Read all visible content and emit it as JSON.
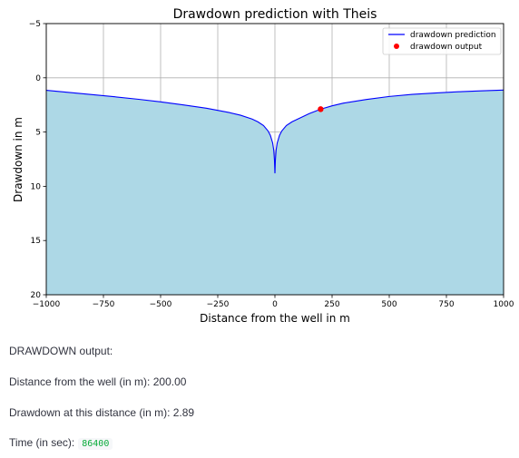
{
  "chart_data": {
    "type": "area",
    "title": "Drawdown prediction with Theis",
    "xlabel": "Distance from the well in m",
    "ylabel": "Drawdown in m",
    "xlim": [
      -1000,
      1000
    ],
    "ylim": [
      -5,
      20
    ],
    "y_inverted": true,
    "grid": true,
    "legend_placement": "top-right",
    "x_ticks": [
      -1000,
      -750,
      -500,
      -250,
      0,
      250,
      500,
      750,
      1000
    ],
    "y_ticks": [
      -5,
      0,
      5,
      10,
      15,
      20
    ],
    "x_tick_labels": [
      "−1000",
      "−750",
      "−500",
      "−250",
      "0",
      "250",
      "500",
      "750",
      "1000"
    ],
    "y_tick_labels": [
      "−5",
      "0",
      "5",
      "10",
      "15",
      "20"
    ],
    "series": [
      {
        "name": "drawdown prediction",
        "kind": "line",
        "color": "#0000ff",
        "fill_color": "#add8e6",
        "x": [
          -1000,
          -900,
          -800,
          -700,
          -600,
          -500,
          -400,
          -300,
          -250,
          -200,
          -150,
          -100,
          -75,
          -50,
          -30,
          -20,
          -10,
          -5,
          -2,
          0,
          2,
          5,
          10,
          20,
          30,
          50,
          75,
          100,
          150,
          200,
          250,
          300,
          400,
          500,
          600,
          700,
          800,
          900,
          1000
        ],
        "y": [
          1.15,
          1.35,
          1.55,
          1.75,
          1.97,
          2.22,
          2.5,
          2.8,
          3.0,
          3.2,
          3.45,
          3.8,
          4.05,
          4.4,
          4.9,
          5.3,
          6.0,
          6.7,
          7.6,
          8.8,
          7.6,
          6.7,
          6.0,
          5.3,
          4.9,
          4.4,
          4.05,
          3.8,
          3.3,
          2.89,
          2.58,
          2.33,
          2.0,
          1.72,
          1.53,
          1.4,
          1.29,
          1.2,
          1.13
        ]
      },
      {
        "name": "drawdown output",
        "kind": "scatter",
        "color": "#ff0000",
        "x": [
          200
        ],
        "y": [
          2.89
        ]
      }
    ]
  },
  "output": {
    "heading": "DRAWDOWN output:",
    "distance_label": "Distance from the well (in m): ",
    "distance_value": "200.00",
    "drawdown_label": "Drawdown at this distance (in m): ",
    "drawdown_value": "2.89",
    "time_label": "Time (in sec):",
    "time_value": "86400"
  }
}
